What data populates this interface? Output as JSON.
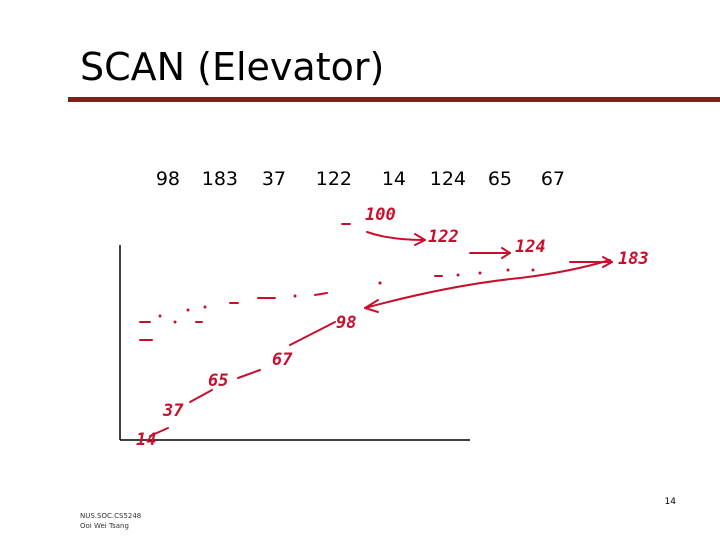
{
  "header": {
    "title": "SCAN (Elevator)"
  },
  "queue": [
    98,
    183,
    37,
    122,
    14,
    124,
    65,
    67
  ],
  "annotations": [
    "100",
    "122",
    "124",
    "183",
    "98",
    "67",
    "65",
    "37",
    "14"
  ],
  "footer": {
    "course": "NUS.SOC.CS5248",
    "author": "Ooi Wei Tsang",
    "page": "14"
  }
}
